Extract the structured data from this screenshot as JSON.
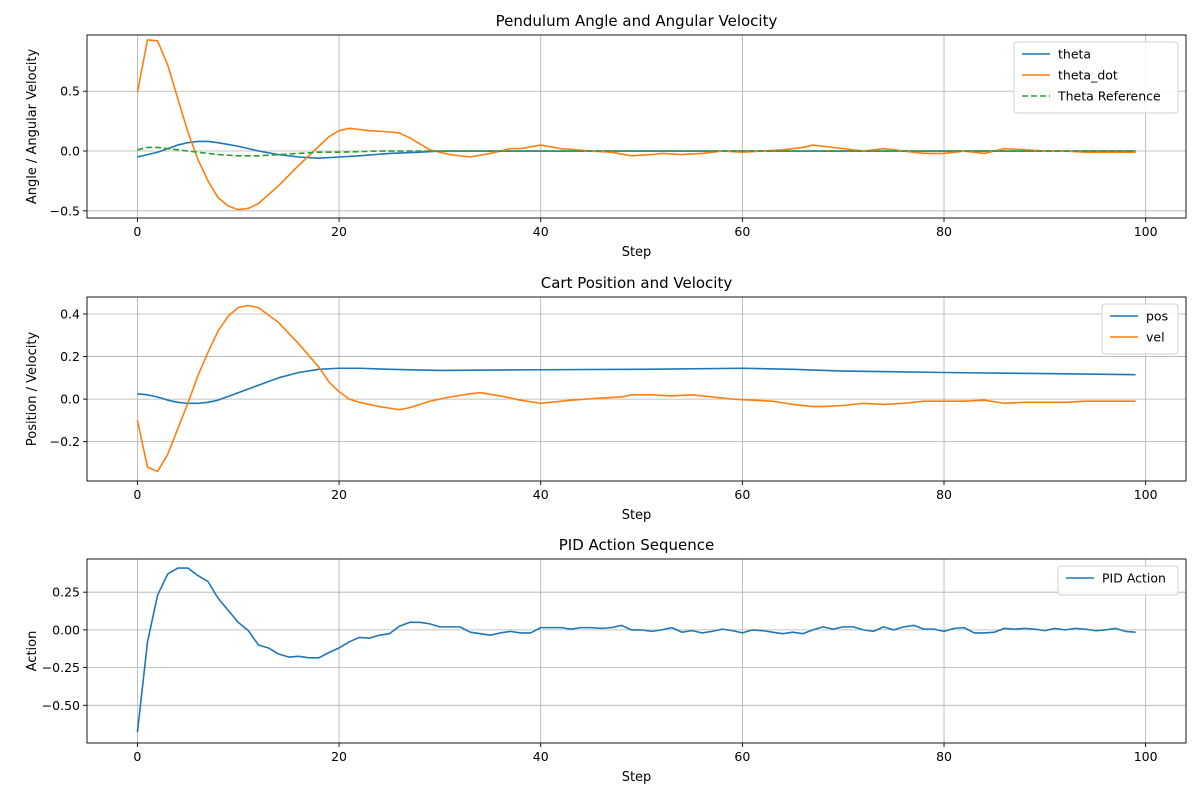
{
  "chart_data": [
    {
      "type": "line",
      "title": "Pendulum Angle and Angular Velocity",
      "xlabel": "Step",
      "ylabel": "Angle / Angular Velocity",
      "xlim": [
        -5,
        104
      ],
      "ylim": [
        -0.56,
        0.97
      ],
      "xticks": [
        0,
        20,
        40,
        60,
        80,
        100
      ],
      "yticks": [
        -0.5,
        0.0,
        0.5
      ],
      "grid": true,
      "legend": "top-right",
      "series": [
        {
          "name": "theta",
          "color": "#1f77b4",
          "dash": "solid",
          "x": [
            0,
            2,
            4,
            5,
            6,
            7,
            8,
            10,
            12,
            14,
            16,
            18,
            20,
            22,
            25,
            28,
            30,
            35,
            40,
            50,
            60,
            70,
            80,
            90,
            99
          ],
          "y": [
            -0.05,
            -0.01,
            0.05,
            0.07,
            0.08,
            0.08,
            0.07,
            0.04,
            0.0,
            -0.03,
            -0.05,
            -0.06,
            -0.05,
            -0.04,
            -0.02,
            -0.01,
            0.0,
            0.0,
            0.0,
            0.0,
            0.0,
            0.0,
            0.0,
            0.0,
            0.0
          ]
        },
        {
          "name": "theta_dot",
          "color": "#ff7f0e",
          "dash": "solid",
          "x": [
            0,
            1,
            2,
            3,
            4,
            5,
            6,
            7,
            8,
            9,
            10,
            11,
            12,
            14,
            16,
            18,
            19,
            20,
            21,
            22,
            23,
            25,
            26,
            27,
            28,
            29,
            31,
            33,
            35,
            37,
            38,
            40,
            42,
            45,
            47,
            49,
            51,
            52,
            54,
            56,
            58,
            60,
            62,
            64,
            66,
            67,
            68,
            70,
            72,
            74,
            76,
            78,
            80,
            82,
            84,
            86,
            88,
            90,
            92,
            94,
            96,
            99
          ],
          "y": [
            0.49,
            0.93,
            0.92,
            0.72,
            0.44,
            0.16,
            -0.07,
            -0.25,
            -0.39,
            -0.46,
            -0.49,
            -0.48,
            -0.44,
            -0.29,
            -0.12,
            0.04,
            0.12,
            0.17,
            0.19,
            0.18,
            0.17,
            0.16,
            0.15,
            0.11,
            0.06,
            0.01,
            -0.03,
            -0.05,
            -0.02,
            0.02,
            0.02,
            0.05,
            0.02,
            0.0,
            -0.01,
            -0.04,
            -0.03,
            -0.02,
            -0.03,
            -0.02,
            0.0,
            -0.01,
            0.0,
            0.01,
            0.03,
            0.05,
            0.04,
            0.02,
            0.0,
            0.02,
            0.0,
            -0.02,
            -0.02,
            0.0,
            -0.02,
            0.02,
            0.01,
            0.0,
            0.0,
            -0.01,
            -0.01,
            -0.01
          ]
        },
        {
          "name": "Theta Reference",
          "color": "#2ca02c",
          "dash": "dashed",
          "x": [
            0,
            1,
            2,
            3,
            4,
            5,
            6,
            8,
            10,
            12,
            14,
            16,
            18,
            20,
            24,
            28,
            32,
            40,
            60,
            80,
            99
          ],
          "y": [
            0.01,
            0.03,
            0.03,
            0.02,
            0.01,
            0.0,
            -0.01,
            -0.03,
            -0.04,
            -0.04,
            -0.03,
            -0.02,
            -0.01,
            -0.01,
            0.0,
            0.0,
            0.0,
            0.0,
            0.0,
            0.0,
            0.0
          ]
        }
      ]
    },
    {
      "type": "line",
      "title": "Cart Position and Velocity",
      "xlabel": "Step",
      "ylabel": "Position / Velocity",
      "xlim": [
        -5,
        104
      ],
      "ylim": [
        -0.385,
        0.48
      ],
      "xticks": [
        0,
        20,
        40,
        60,
        80,
        100
      ],
      "yticks": [
        -0.2,
        0.0,
        0.2,
        0.4
      ],
      "grid": true,
      "legend": "top-right",
      "series": [
        {
          "name": "pos",
          "color": "#1f77b4",
          "dash": "solid",
          "x": [
            0,
            1,
            2,
            3,
            4,
            5,
            6,
            7,
            8,
            10,
            12,
            14,
            16,
            18,
            20,
            22,
            25,
            30,
            40,
            50,
            60,
            65,
            70,
            80,
            90,
            99
          ],
          "y": [
            0.025,
            0.02,
            0.01,
            -0.005,
            -0.015,
            -0.02,
            -0.02,
            -0.015,
            -0.005,
            0.03,
            0.065,
            0.1,
            0.125,
            0.14,
            0.145,
            0.145,
            0.14,
            0.135,
            0.138,
            0.14,
            0.145,
            0.14,
            0.132,
            0.125,
            0.12,
            0.115
          ]
        },
        {
          "name": "vel",
          "color": "#ff7f0e",
          "dash": "solid",
          "x": [
            0,
            1,
            2,
            3,
            4,
            5,
            6,
            7,
            8,
            9,
            10,
            11,
            12,
            14,
            16,
            18,
            19,
            20,
            21,
            22,
            24,
            26,
            27,
            29,
            31,
            33,
            34,
            36,
            38,
            40,
            43,
            46,
            48,
            49,
            51,
            53,
            55,
            57,
            59,
            61,
            63,
            65,
            67,
            68,
            70,
            72,
            74,
            76,
            78,
            80,
            82,
            84,
            86,
            88,
            90,
            92,
            94,
            96,
            99
          ],
          "y": [
            -0.1,
            -0.32,
            -0.34,
            -0.26,
            -0.14,
            -0.02,
            0.11,
            0.22,
            0.32,
            0.39,
            0.43,
            0.44,
            0.43,
            0.36,
            0.26,
            0.15,
            0.08,
            0.035,
            0.0,
            -0.015,
            -0.035,
            -0.05,
            -0.04,
            -0.01,
            0.01,
            0.025,
            0.03,
            0.015,
            -0.005,
            -0.02,
            -0.005,
            0.005,
            0.01,
            0.02,
            0.02,
            0.015,
            0.02,
            0.01,
            0.0,
            -0.005,
            -0.01,
            -0.025,
            -0.035,
            -0.035,
            -0.03,
            -0.02,
            -0.025,
            -0.02,
            -0.01,
            -0.01,
            -0.01,
            -0.005,
            -0.02,
            -0.015,
            -0.015,
            -0.015,
            -0.01,
            -0.01,
            -0.01
          ]
        }
      ]
    },
    {
      "type": "line",
      "title": "PID Action Sequence",
      "xlabel": "Step",
      "ylabel": "Action",
      "xlim": [
        -5,
        104
      ],
      "ylim": [
        -0.75,
        0.47
      ],
      "xticks": [
        0,
        20,
        40,
        60,
        80,
        100
      ],
      "yticks": [
        -0.5,
        -0.25,
        0.0,
        0.25
      ],
      "grid": true,
      "legend": "top-right",
      "series": [
        {
          "name": "PID Action",
          "color": "#1f77b4",
          "dash": "solid",
          "x": [
            0,
            1,
            2,
            3,
            4,
            5,
            6,
            7,
            8,
            9,
            10,
            11,
            12,
            13,
            14,
            15,
            16,
            17,
            18,
            19,
            20,
            21,
            22,
            23,
            24,
            25,
            26,
            27,
            28,
            29,
            30,
            31,
            32,
            33,
            34,
            35,
            36,
            37,
            38,
            39,
            40,
            41,
            42,
            43,
            44,
            45,
            46,
            47,
            48,
            49,
            50,
            51,
            52,
            53,
            54,
            55,
            56,
            57,
            58,
            59,
            60,
            61,
            62,
            63,
            64,
            65,
            66,
            67,
            68,
            69,
            70,
            71,
            72,
            73,
            74,
            75,
            76,
            77,
            78,
            79,
            80,
            81,
            82,
            83,
            84,
            85,
            86,
            87,
            88,
            89,
            90,
            91,
            92,
            93,
            94,
            95,
            96,
            97,
            98,
            99
          ],
          "y": [
            -0.68,
            -0.08,
            0.23,
            0.37,
            0.41,
            0.41,
            0.36,
            0.32,
            0.21,
            0.13,
            0.05,
            -0.005,
            -0.1,
            -0.12,
            -0.16,
            -0.18,
            -0.175,
            -0.185,
            -0.185,
            -0.15,
            -0.12,
            -0.08,
            -0.05,
            -0.055,
            -0.035,
            -0.025,
            0.025,
            0.05,
            0.05,
            0.04,
            0.02,
            0.02,
            0.02,
            -0.015,
            -0.025,
            -0.035,
            -0.02,
            -0.01,
            -0.02,
            -0.02,
            0.015,
            0.015,
            0.015,
            0.005,
            0.015,
            0.015,
            0.01,
            0.015,
            0.03,
            0.0,
            0.0,
            -0.01,
            0.0,
            0.015,
            -0.015,
            -0.005,
            -0.02,
            -0.01,
            0.005,
            -0.005,
            -0.02,
            0.0,
            -0.005,
            -0.015,
            -0.025,
            -0.015,
            -0.025,
            0.0,
            0.02,
            0.005,
            0.02,
            0.02,
            0.0,
            -0.01,
            0.02,
            0.0,
            0.02,
            0.03,
            0.005,
            0.005,
            -0.01,
            0.01,
            0.015,
            -0.02,
            -0.02,
            -0.015,
            0.01,
            0.005,
            0.01,
            0.005,
            -0.005,
            0.01,
            0.0,
            0.01,
            0.005,
            -0.005,
            0.0,
            0.01,
            -0.01,
            -0.015
          ]
        }
      ]
    }
  ]
}
